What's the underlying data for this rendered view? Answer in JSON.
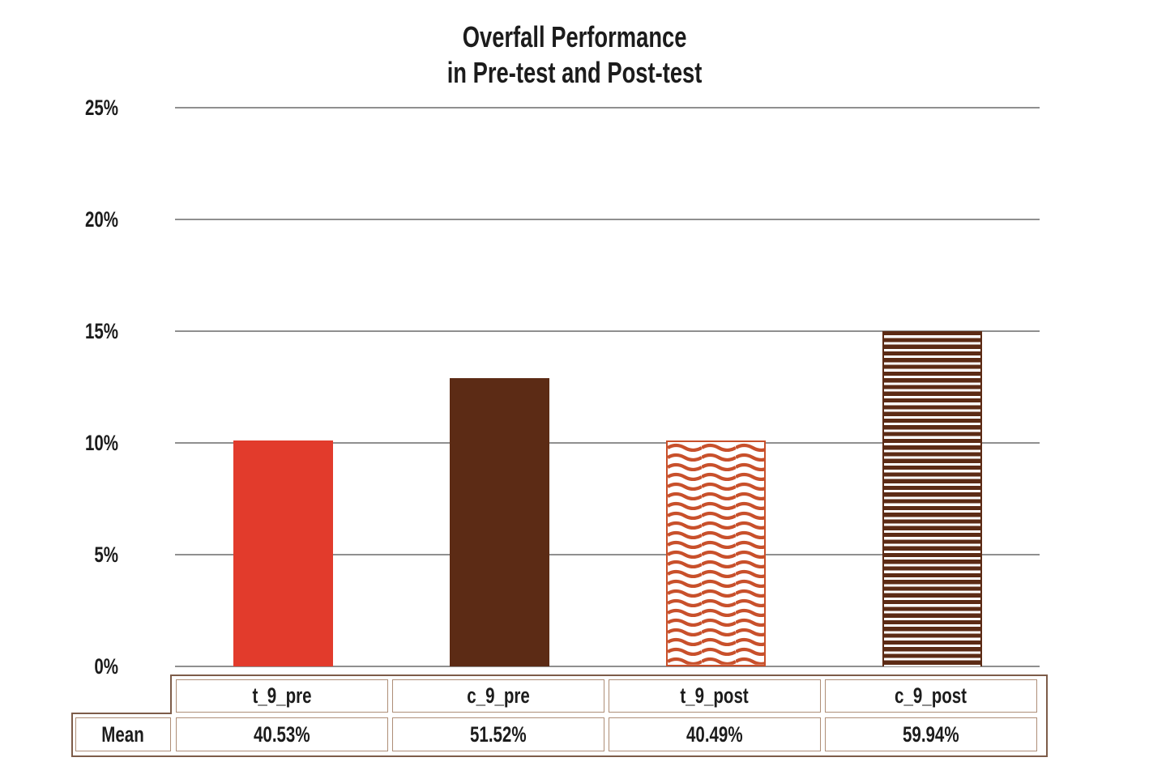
{
  "title": {
    "line1": "Overfall Performance",
    "line2": "in Pre-test and Post-test"
  },
  "chart_data": {
    "type": "bar",
    "title": "Overfall Performance in Pre-test and Post-test",
    "categories": [
      "t_9_pre",
      "c_9_pre",
      "t_9_post",
      "c_9_post"
    ],
    "displayed_bar_values_pct": [
      10.1,
      12.9,
      10.1,
      15.0
    ],
    "table_means_pct": [
      40.53,
      51.52,
      40.49,
      59.94
    ],
    "xlabel": "",
    "ylabel": "",
    "ylim": [
      0,
      25
    ],
    "yticks": [
      {
        "value": 0,
        "label": "0%"
      },
      {
        "value": 5,
        "label": "5%"
      },
      {
        "value": 10,
        "label": "10%"
      },
      {
        "value": 15,
        "label": "15%"
      },
      {
        "value": 20,
        "label": "20%"
      },
      {
        "value": 25,
        "label": "25%"
      }
    ],
    "grid": "horizontal",
    "legend_position": "none",
    "series_styles": [
      {
        "name": "t_9_pre",
        "pattern": "solid",
        "color": "#E23B2C"
      },
      {
        "name": "c_9_pre",
        "pattern": "solid",
        "color": "#5C2B15"
      },
      {
        "name": "t_9_post",
        "pattern": "wavy-lines",
        "color": "#C8502B"
      },
      {
        "name": "c_9_post",
        "pattern": "horizontal-stripes",
        "color": "#5C2B15"
      }
    ]
  },
  "data_table": {
    "row_label": "Mean",
    "columns": [
      "t_9_pre",
      "c_9_pre",
      "t_9_post",
      "c_9_post"
    ],
    "values": [
      "40.53%",
      "51.52%",
      "40.49%",
      "59.94%"
    ],
    "outer_border_color": "#7D5C49",
    "inner_border_color": "#AE8E77"
  },
  "colors": {
    "grid": "#8F8F8F",
    "text": "#1C1C1C",
    "background": "#FFFFFF"
  }
}
